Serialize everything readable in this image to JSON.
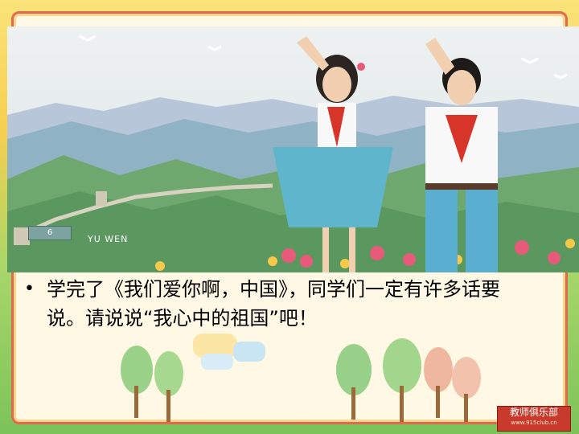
{
  "slide": {
    "body_text": "学完了《我们爱你啊，中国》，同学们一定有许多话要说。请说说“我心中的祖国”吧！",
    "bullet_char": "•"
  },
  "illustration": {
    "page_number": "6",
    "subject_label": "YU WEN"
  },
  "stamp": {
    "brand_text": "教师俱乐部",
    "url_text": "www.915club.cn"
  },
  "colors": {
    "frame_border": "#e2694f",
    "stamp_red": "#c73a2c"
  }
}
